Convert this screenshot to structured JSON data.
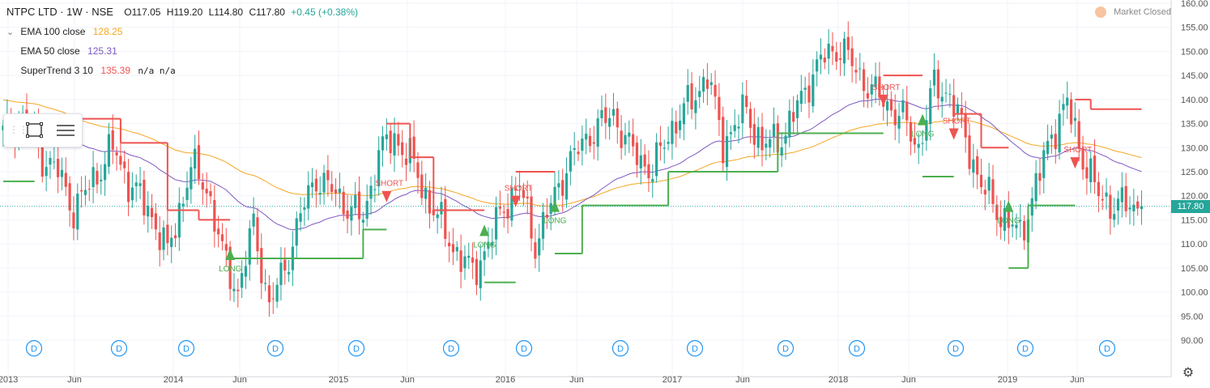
{
  "header": {
    "symbol": "NTPC LTD · 1W · NSE",
    "open": "O117.05",
    "high": "H119.20",
    "low": "L114.80",
    "close": "C117.80",
    "change": "+0.45 (+0.38%)"
  },
  "indicators": [
    {
      "name": "EMA 100 close",
      "value": "128.25",
      "color": "#f5a623"
    },
    {
      "name": "EMA 50 close",
      "value": "125.31",
      "color": "#7e57c2"
    },
    {
      "name": "SuperTrend 3 10",
      "value": "135.39",
      "extra": "n/a n/a",
      "color": "#ef5350"
    }
  ],
  "market_status": "Market Closed",
  "last_price_label": "117.80",
  "colors": {
    "up": "#26a69a",
    "down": "#ef5350",
    "ema100": "#f5a623",
    "ema50": "#7e57c2",
    "supertrend_up": "#4caf50",
    "supertrend_down": "#ef5350",
    "grid": "#f0f3fa",
    "dividend": "#2196f3"
  },
  "icons": {
    "toolbar": [
      "rectangle-select-icon",
      "lines-menu-icon"
    ],
    "settings": "gear-icon",
    "status": "market-closed-icon"
  },
  "chart_data": {
    "type": "candlestick",
    "price_axis": {
      "min": 90,
      "max": 160,
      "ticks": [
        "160.00",
        "155.00",
        "150.00",
        "145.00",
        "140.00",
        "135.00",
        "130.00",
        "125.00",
        "120.00",
        "115.00",
        "110.00",
        "105.00",
        "100.00",
        "95.00",
        "90.00"
      ]
    },
    "time_axis": {
      "labels": [
        "2013",
        "Jun",
        "2014",
        "Jun",
        "2015",
        "Jun",
        "2016",
        "Jun",
        "2017",
        "Jun",
        "2018",
        "Jun",
        "2019",
        "Jun"
      ]
    },
    "dividend_marker_label": "D",
    "dividend_count": 13,
    "signals": [
      {
        "label": "LONG",
        "price": 108,
        "week": 58
      },
      {
        "label": "SHORT",
        "price": 120,
        "week": 98
      },
      {
        "label": "LONG",
        "price": 113,
        "week": 123
      },
      {
        "label": "SHORT",
        "price": 119,
        "week": 131
      },
      {
        "label": "LONG",
        "price": 118,
        "week": 141
      },
      {
        "label": "SHORT",
        "price": 140,
        "week": 225
      },
      {
        "label": "LONG",
        "price": 136,
        "week": 235
      },
      {
        "label": "SHORT",
        "price": 133,
        "week": 243
      },
      {
        "label": "LONG",
        "price": 118,
        "week": 257
      },
      {
        "label": "SHORT",
        "price": 127,
        "week": 274
      }
    ],
    "series": [
      {
        "name": "EMA 100 close",
        "last": 128.25
      },
      {
        "name": "EMA 50 close",
        "last": 125.31
      },
      {
        "name": "SuperTrend 3 10",
        "last": 135.39
      }
    ],
    "last_close": 117.8
  }
}
